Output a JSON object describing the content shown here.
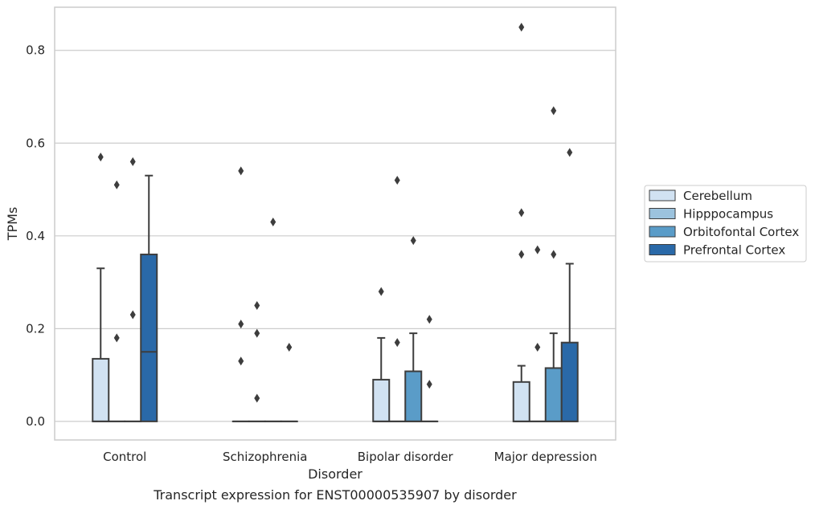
{
  "chart_data": {
    "type": "box",
    "xlabel": "Disorder",
    "ylabel": "TPMs",
    "caption": "Transcript expression for ENST00000535907 by disorder",
    "ylim": [
      -0.04,
      0.893
    ],
    "yticks": [
      0.0,
      0.2,
      0.4,
      0.6,
      0.8
    ],
    "ytick_labels": [
      "0.0",
      "0.2",
      "0.4",
      "0.6",
      "0.8"
    ],
    "grid": "horizontal",
    "legend_position": "right",
    "categories": [
      "Control",
      "Schizophrenia",
      "Bipolar disorder",
      "Major depression"
    ],
    "series": [
      {
        "name": "Cerebellum",
        "color": "#d1e2f2",
        "boxes": [
          {
            "q1": 0,
            "median": 0,
            "q3": 0.135,
            "whisker_low": 0,
            "whisker_high": 0.33,
            "outliers": [
              0.57
            ]
          },
          {
            "q1": 0,
            "median": 0,
            "q3": 0,
            "whisker_low": 0,
            "whisker_high": 0,
            "outliers": [
              0.54,
              0.21,
              0.13
            ]
          },
          {
            "q1": 0,
            "median": 0,
            "q3": 0.09,
            "whisker_low": 0,
            "whisker_high": 0.18,
            "outliers": [
              0.28
            ]
          },
          {
            "q1": 0,
            "median": 0,
            "q3": 0.085,
            "whisker_low": 0,
            "whisker_high": 0.12,
            "outliers": [
              0.85,
              0.45,
              0.36
            ]
          }
        ]
      },
      {
        "name": "Hipppocampus",
        "color": "#9cc3de",
        "boxes": [
          {
            "q1": 0,
            "median": 0,
            "q3": 0,
            "whisker_low": 0,
            "whisker_high": 0,
            "outliers": [
              0.51,
              0.18
            ]
          },
          {
            "q1": 0,
            "median": 0,
            "q3": 0,
            "whisker_low": 0,
            "whisker_high": 0,
            "outliers": [
              0.25,
              0.19,
              0.05
            ]
          },
          {
            "q1": 0,
            "median": 0,
            "q3": 0,
            "whisker_low": 0,
            "whisker_high": 0,
            "outliers": [
              0.52,
              0.17
            ]
          },
          {
            "q1": 0,
            "median": 0,
            "q3": 0,
            "whisker_low": 0,
            "whisker_high": 0,
            "outliers": [
              0.37,
              0.16
            ]
          }
        ]
      },
      {
        "name": "Orbitofontal Cortex",
        "color": "#5a9cc8",
        "boxes": [
          {
            "q1": 0,
            "median": 0,
            "q3": 0,
            "whisker_low": 0,
            "whisker_high": 0,
            "outliers": [
              0.56,
              0.23
            ]
          },
          {
            "q1": 0,
            "median": 0,
            "q3": 0,
            "whisker_low": 0,
            "whisker_high": 0,
            "outliers": [
              0.43
            ]
          },
          {
            "q1": 0,
            "median": 0,
            "q3": 0.108,
            "whisker_low": 0,
            "whisker_high": 0.19,
            "outliers": [
              0.39
            ]
          },
          {
            "q1": 0,
            "median": 0,
            "q3": 0.115,
            "whisker_low": 0,
            "whisker_high": 0.19,
            "outliers": [
              0.67,
              0.36
            ]
          }
        ]
      },
      {
        "name": "Prefrontal Cortex",
        "color": "#2a69a8",
        "boxes": [
          {
            "q1": 0,
            "median": 0.15,
            "q3": 0.36,
            "whisker_low": 0,
            "whisker_high": 0.53,
            "outliers": []
          },
          {
            "q1": 0,
            "median": 0,
            "q3": 0,
            "whisker_low": 0,
            "whisker_high": 0,
            "outliers": [
              0.16
            ]
          },
          {
            "q1": 0,
            "median": 0,
            "q3": 0,
            "whisker_low": 0,
            "whisker_high": 0,
            "outliers": [
              0.22,
              0.08
            ]
          },
          {
            "q1": 0,
            "median": 0,
            "q3": 0.17,
            "whisker_low": 0,
            "whisker_high": 0.34,
            "outliers": [
              0.58
            ]
          }
        ]
      }
    ]
  }
}
